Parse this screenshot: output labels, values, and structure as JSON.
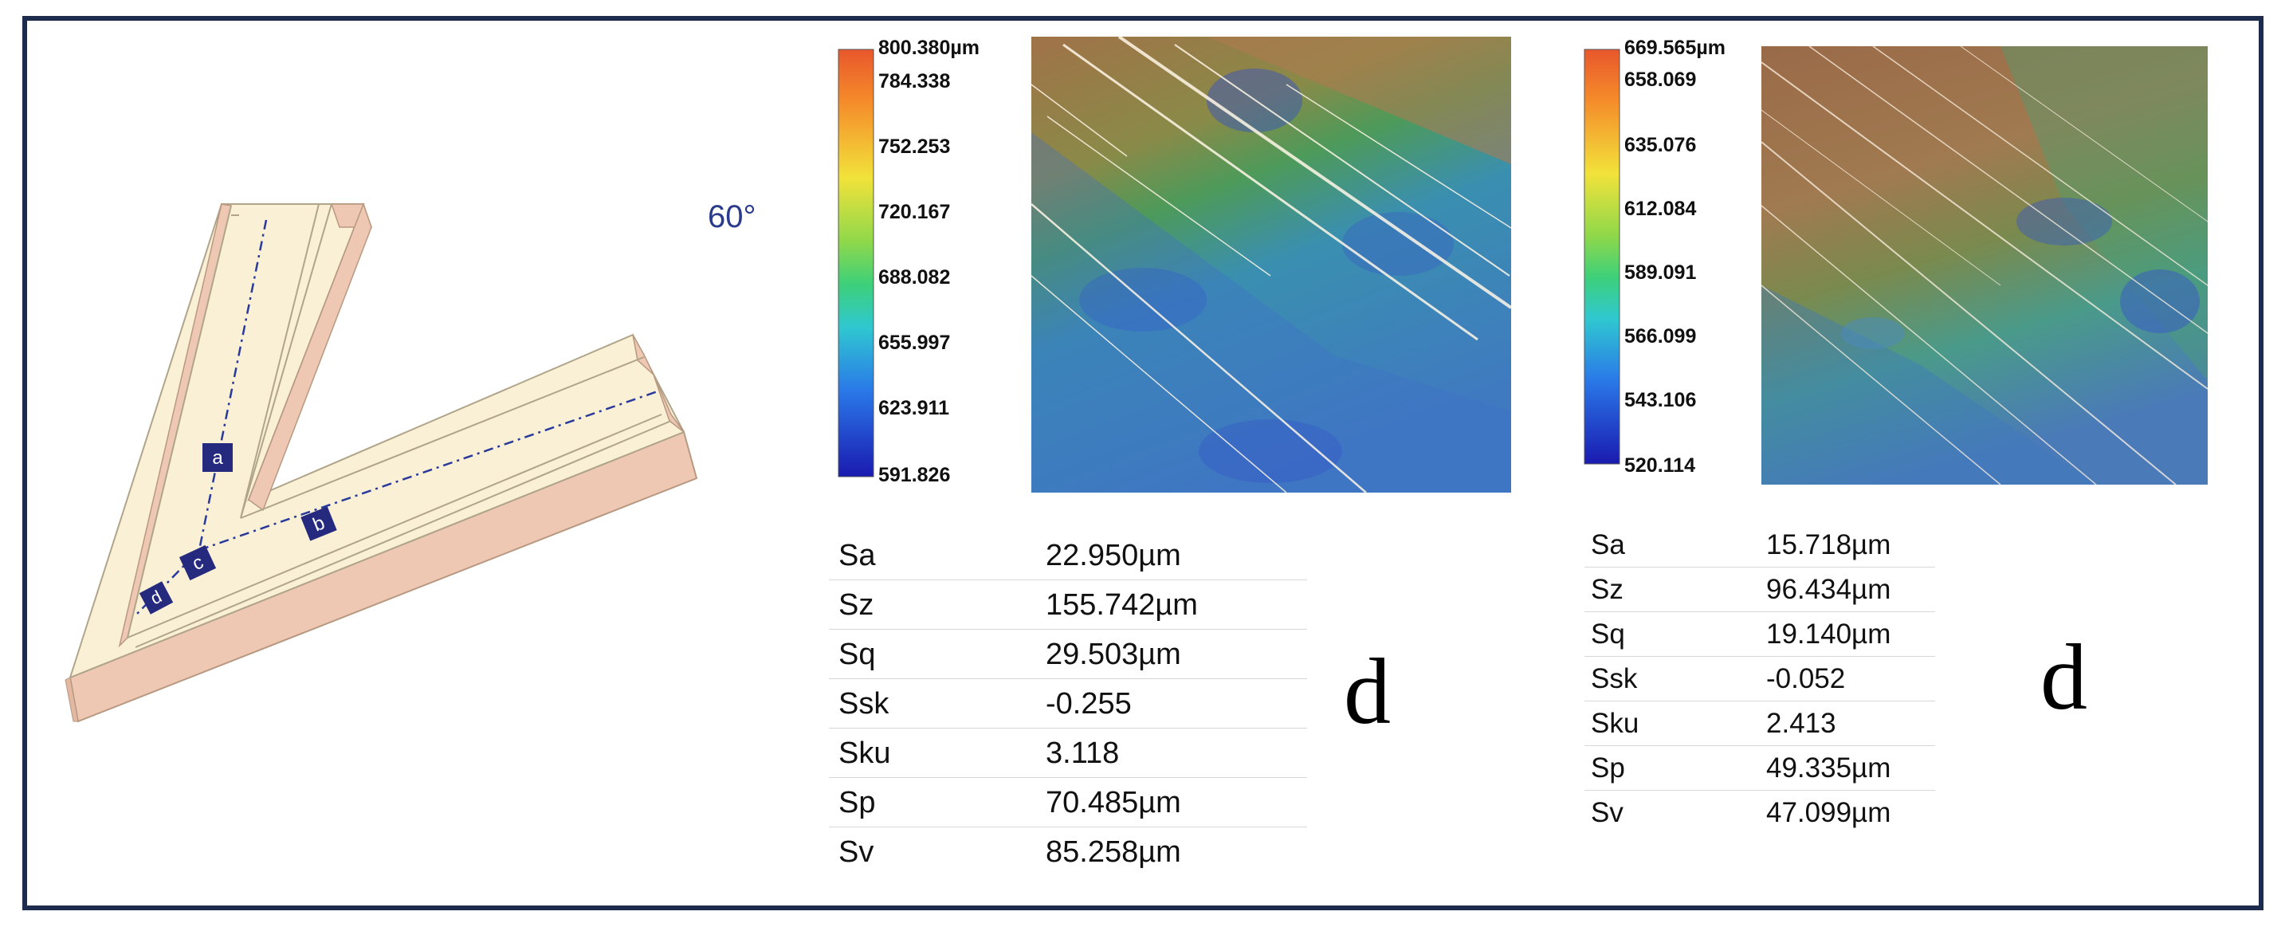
{
  "angle_label": "60°",
  "channel_markers": [
    "a",
    "b",
    "c",
    "d"
  ],
  "panels": [
    {
      "colorbar_ticks": [
        "800.380µm",
        "784.338",
        "752.253",
        "720.167",
        "688.082",
        "655.997",
        "623.911",
        "591.826"
      ],
      "parameters": [
        {
          "name": "Sa",
          "value": "22.950µm"
        },
        {
          "name": "Sz",
          "value": "155.742µm"
        },
        {
          "name": "Sq",
          "value": "29.503µm"
        },
        {
          "name": "Ssk",
          "value": "-0.255"
        },
        {
          "name": "Sku",
          "value": "3.118"
        },
        {
          "name": "Sp",
          "value": "70.485µm"
        },
        {
          "name": "Sv",
          "value": "85.258µm"
        }
      ],
      "position_label": "d"
    },
    {
      "colorbar_ticks": [
        "669.565µm",
        "658.069",
        "635.076",
        "612.084",
        "589.091",
        "566.099",
        "543.106",
        "520.114"
      ],
      "parameters": [
        {
          "name": "Sa",
          "value": "15.718µm"
        },
        {
          "name": "Sz",
          "value": "96.434µm"
        },
        {
          "name": "Sq",
          "value": "19.140µm"
        },
        {
          "name": "Ssk",
          "value": "-0.052"
        },
        {
          "name": "Sku",
          "value": "2.413"
        },
        {
          "name": "Sp",
          "value": "49.335µm"
        },
        {
          "name": "Sv",
          "value": "47.099µm"
        }
      ],
      "position_label": "d"
    }
  ]
}
